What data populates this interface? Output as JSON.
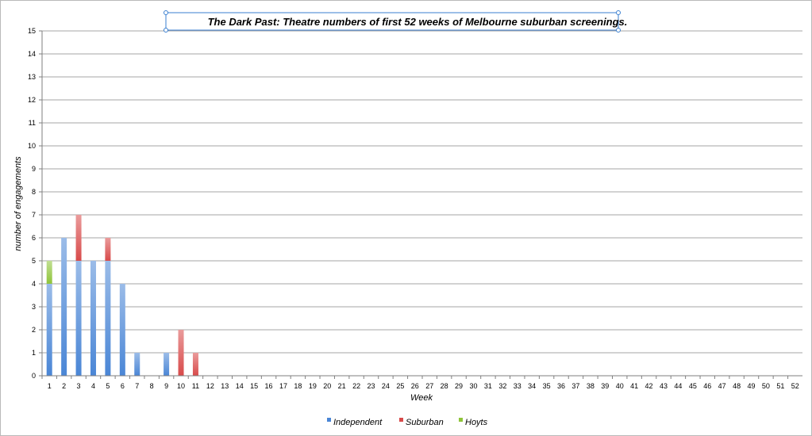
{
  "chart_data": {
    "type": "bar",
    "stacked": true,
    "title": "The Dark Past: Theatre numbers of first 52 weeks of Melbourne suburban screenings.",
    "xlabel": "Week",
    "ylabel": "number of engagements",
    "ylim": [
      0,
      15
    ],
    "yticks": [
      "0",
      "1",
      "2",
      "3",
      "4",
      "5",
      "6",
      "7",
      "8",
      "9",
      "10",
      "11",
      "12",
      "13",
      "14",
      "15"
    ],
    "grid": true,
    "legend_position": "bottom",
    "categories": [
      "1",
      "2",
      "3",
      "4",
      "5",
      "6",
      "7",
      "8",
      "9",
      "10",
      "11",
      "12",
      "13",
      "14",
      "15",
      "16",
      "17",
      "18",
      "19",
      "20",
      "21",
      "22",
      "23",
      "24",
      "25",
      "26",
      "27",
      "28",
      "29",
      "30",
      "31",
      "32",
      "33",
      "34",
      "35",
      "36",
      "37",
      "38",
      "39",
      "40",
      "41",
      "42",
      "43",
      "44",
      "45",
      "46",
      "47",
      "48",
      "49",
      "50",
      "51",
      "52"
    ],
    "series": [
      {
        "name": "Independent",
        "color": "#4a86d6",
        "values": [
          4,
          6,
          5,
          5,
          5,
          4,
          1,
          0,
          1,
          0,
          0,
          0,
          0,
          0,
          0,
          0,
          0,
          0,
          0,
          0,
          0,
          0,
          0,
          0,
          0,
          0,
          0,
          0,
          0,
          0,
          0,
          0,
          0,
          0,
          0,
          0,
          0,
          0,
          0,
          0,
          0,
          0,
          0,
          0,
          0,
          0,
          0,
          0,
          0,
          0,
          0,
          0
        ]
      },
      {
        "name": "Suburban",
        "color": "#d84a4a",
        "values": [
          0,
          0,
          2,
          0,
          1,
          0,
          0,
          0,
          0,
          2,
          1,
          0,
          0,
          0,
          0,
          0,
          0,
          0,
          0,
          0,
          0,
          0,
          0,
          0,
          0,
          0,
          0,
          0,
          0,
          0,
          0,
          0,
          0,
          0,
          0,
          0,
          0,
          0,
          0,
          0,
          0,
          0,
          0,
          0,
          0,
          0,
          0,
          0,
          0,
          0,
          0,
          0
        ]
      },
      {
        "name": "Hoyts",
        "color": "#8fc43a",
        "values": [
          1,
          0,
          0,
          0,
          0,
          0,
          0,
          0,
          0,
          0,
          0,
          0,
          0,
          0,
          0,
          0,
          0,
          0,
          0,
          0,
          0,
          0,
          0,
          0,
          0,
          0,
          0,
          0,
          0,
          0,
          0,
          0,
          0,
          0,
          0,
          0,
          0,
          0,
          0,
          0,
          0,
          0,
          0,
          0,
          0,
          0,
          0,
          0,
          0,
          0,
          0,
          0
        ]
      }
    ]
  }
}
